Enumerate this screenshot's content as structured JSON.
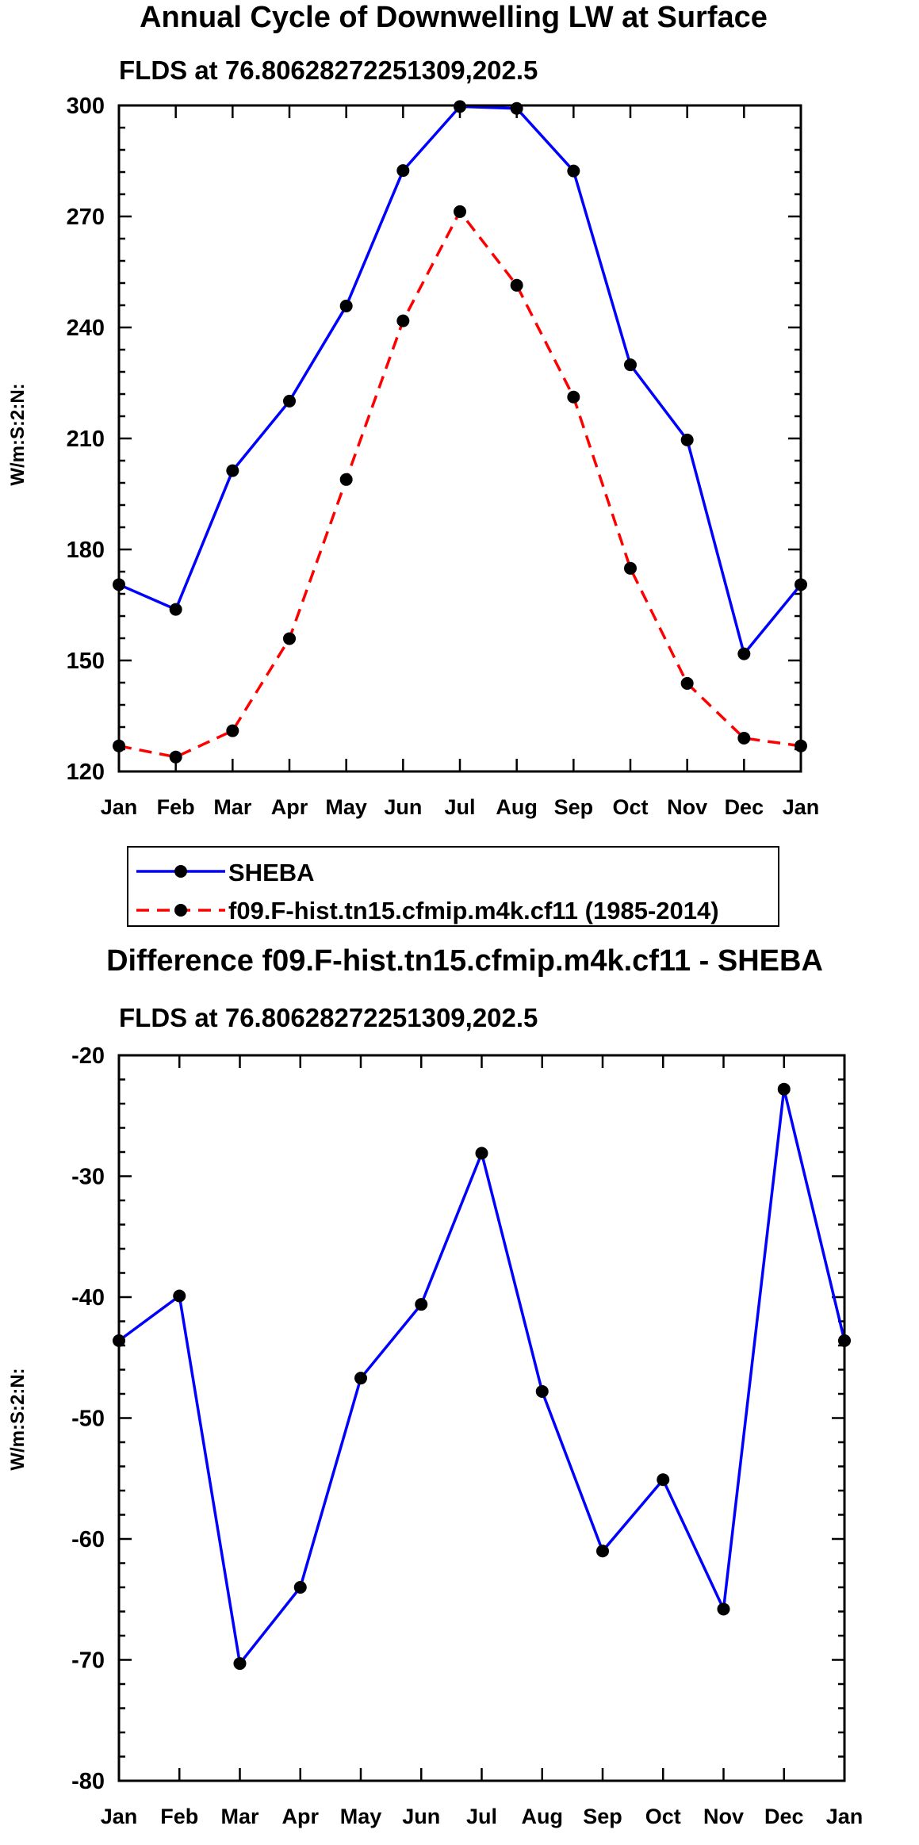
{
  "colors": {
    "sheba": "#0000ff",
    "model": "#ff0000",
    "marker": "#000000",
    "axis": "#000000"
  },
  "chart_data": [
    {
      "type": "line",
      "title": "Annual Cycle of Downwelling LW at Surface",
      "subtitle": "FLDS at 76.80628272251309,202.5",
      "xlabel": "",
      "ylabel": "W/m:S:2:N:",
      "categories": [
        "Jan",
        "Feb",
        "Mar",
        "Apr",
        "May",
        "Jun",
        "Jul",
        "Aug",
        "Sep",
        "Oct",
        "Nov",
        "Dec",
        "Jan"
      ],
      "ylim": [
        120,
        300
      ],
      "yticks": [
        120,
        150,
        180,
        210,
        240,
        270,
        300
      ],
      "grid": false,
      "legend_position": "below",
      "series": [
        {
          "name": "SHEBA",
          "style": "solid",
          "values": [
            170.5,
            163.8,
            201.3,
            220.1,
            245.8,
            282.4,
            299.7,
            299.2,
            282.3,
            229.9,
            209.6,
            151.8,
            170.5
          ]
        },
        {
          "name": "f09.F-hist.tn15.cfmip.m4k.cf11 (1985-2014)",
          "style": "dashed",
          "values": [
            126.9,
            123.9,
            131.0,
            155.9,
            198.9,
            241.8,
            271.3,
            251.4,
            221.2,
            174.9,
            143.8,
            129.0,
            126.9
          ]
        }
      ]
    },
    {
      "type": "line",
      "title": "Difference f09.F-hist.tn15.cfmip.m4k.cf11 - SHEBA",
      "subtitle": "FLDS at 76.80628272251309,202.5",
      "xlabel": "",
      "ylabel": "W/m:S:2:N:",
      "categories": [
        "Jan",
        "Feb",
        "Mar",
        "Apr",
        "May",
        "Jun",
        "Jul",
        "Aug",
        "Sep",
        "Oct",
        "Nov",
        "Dec",
        "Jan"
      ],
      "ylim": [
        -80,
        -20
      ],
      "yticks": [
        -80,
        -70,
        -60,
        -50,
        -40,
        -30,
        -20
      ],
      "grid": false,
      "series": [
        {
          "name": "Difference",
          "style": "solid",
          "values": [
            -43.6,
            -39.9,
            -70.3,
            -64.0,
            -46.7,
            -40.6,
            -28.1,
            -47.8,
            -61.0,
            -55.1,
            -65.8,
            -22.8,
            -43.6
          ]
        }
      ]
    }
  ]
}
